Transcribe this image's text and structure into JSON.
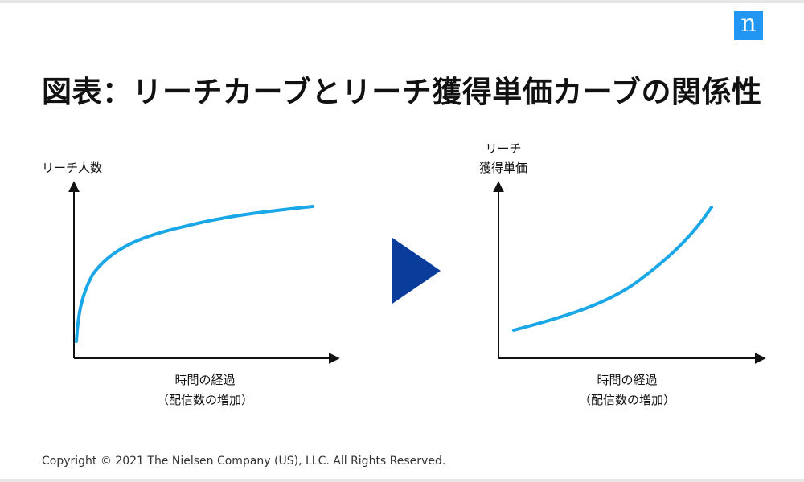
{
  "brand": {
    "logo_letter": "n",
    "logo_color": "#2196f3"
  },
  "title": "図表：リーチカーブとリーチ獲得単価カーブの関係性",
  "left_chart": {
    "y_label": "リーチ人数",
    "x_label_line1": "時間の経過",
    "x_label_line2": "（配信数の増加）",
    "curve_shape": "concave-increasing"
  },
  "arrow": {
    "icon": "triangle-right-icon",
    "color": "#0a3c9c"
  },
  "right_chart": {
    "y_label_line1": "リーチ",
    "y_label_line2": "獲得単価",
    "x_label_line1": "時間の経過",
    "x_label_line2": "（配信数の増加）",
    "curve_shape": "convex-increasing"
  },
  "curve_color": "#1aa7e8",
  "axis_color": "#111111",
  "footer": {
    "copyright": "Copyright © 2021 The Nielsen Company (US), LLC. All Rights Reserved."
  }
}
